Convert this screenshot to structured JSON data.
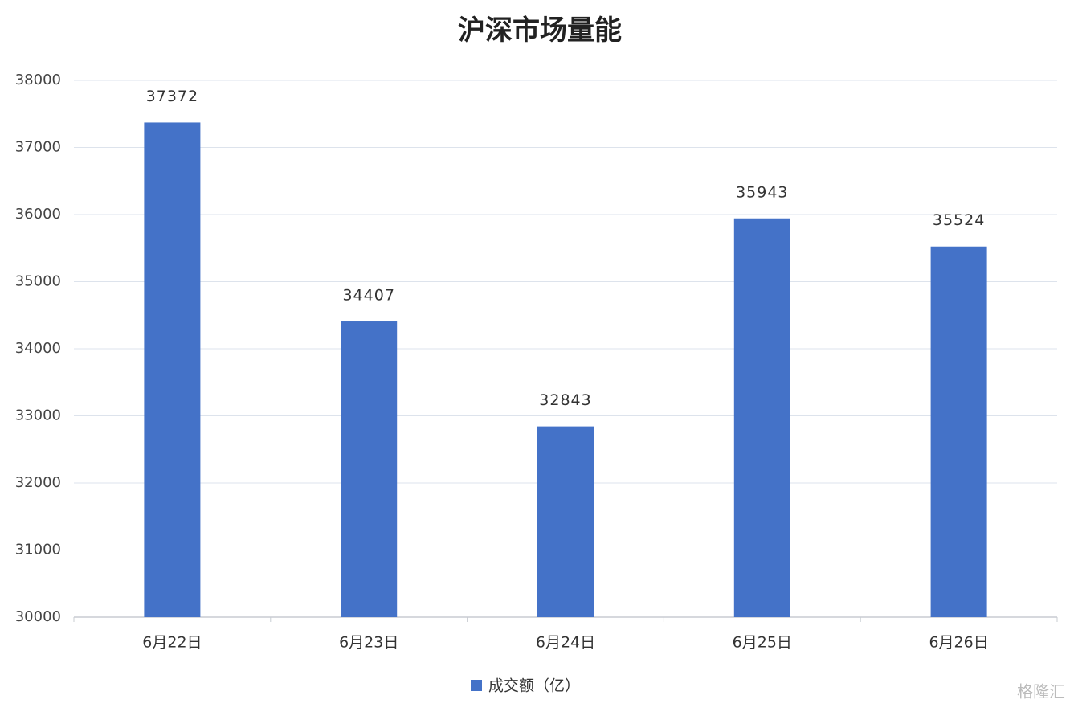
{
  "chart_data": {
    "type": "bar",
    "title": "沪深市场量能",
    "categories": [
      "6月22日",
      "6月23日",
      "6月24日",
      "6月25日",
      "6月26日"
    ],
    "series": [
      {
        "name": "成交额（亿）",
        "color": "#4472c8",
        "values": [
          37372,
          34407,
          32843,
          35943,
          35524
        ]
      }
    ],
    "ylim": [
      30000,
      38000
    ],
    "yticks": [
      30000,
      31000,
      32000,
      33000,
      34000,
      35000,
      36000,
      37000,
      38000
    ],
    "grid": true,
    "legend": "bottom",
    "watermark": "格隆汇"
  }
}
